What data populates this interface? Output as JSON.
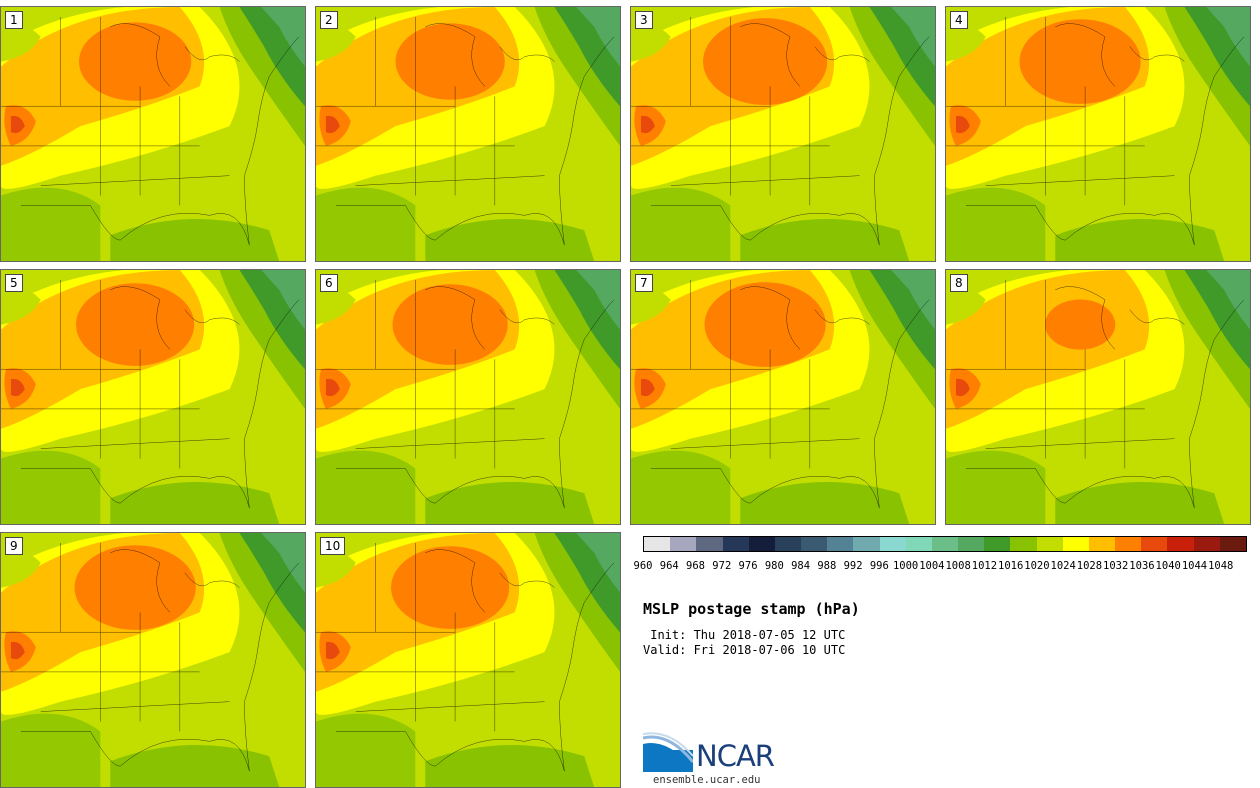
{
  "figure": {
    "title": "MSLP postage stamp (hPa)",
    "init_line": " Init: Thu 2018-07-05 12 UTC",
    "valid_line": "Valid: Fri 2018-07-06 10 UTC"
  },
  "members": [
    {
      "label": "1",
      "center_strength": 0.55
    },
    {
      "label": "2",
      "center_strength": 0.5
    },
    {
      "label": "3",
      "center_strength": 0.75
    },
    {
      "label": "4",
      "center_strength": 0.7
    },
    {
      "label": "5",
      "center_strength": 0.65
    },
    {
      "label": "6",
      "center_strength": 0.6
    },
    {
      "label": "7",
      "center_strength": 0.7
    },
    {
      "label": "8",
      "center_strength": 0.35
    },
    {
      "label": "9",
      "center_strength": 0.7
    },
    {
      "label": "10",
      "center_strength": 0.65
    }
  ],
  "colorbar": {
    "tick_labels": [
      "960",
      "964",
      "968",
      "972",
      "976",
      "980",
      "984",
      "988",
      "992",
      "996",
      "1000",
      "1004",
      "1008",
      "1012",
      "1016",
      "1020",
      "1024",
      "1028",
      "1032",
      "1036",
      "1040",
      "1044",
      "1048"
    ],
    "colors": [
      "#e6e6e6",
      "#a6a6bf",
      "#5e6880",
      "#263859",
      "#141e3a",
      "#28405a",
      "#3a5a72",
      "#538294",
      "#70a9ae",
      "#8ad8d0",
      "#80d8b8",
      "#6cbe88",
      "#55a860",
      "#3f9a2a",
      "#88c200",
      "#c2de00",
      "#ffff00",
      "#ffbe00",
      "#ff8000",
      "#e84a0e",
      "#c8200a",
      "#9a1a10",
      "#6a1a0e"
    ]
  },
  "logo": {
    "text": "NCAR",
    "url": "ensemble.ucar.edu",
    "colors": {
      "dark": "#1a3f7a",
      "mid": "#0d77c4",
      "light": "#8fb7dd"
    }
  }
}
